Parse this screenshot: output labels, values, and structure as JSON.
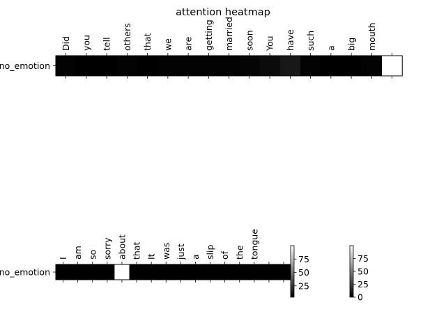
{
  "chart_data": {
    "type": "heatmap",
    "title": "attention heatmap",
    "colormap": "gray",
    "colors": {
      "low": "#000000",
      "high": "#ffffff",
      "frame": "#000000"
    },
    "panels": [
      {
        "row_label": "no_emotion",
        "tokens": [
          "Did",
          "you",
          "tell",
          "others",
          "that",
          "we",
          "are",
          "getting",
          "married",
          "soon",
          "You",
          "have",
          "such",
          "a",
          "big",
          "mouth",
          ""
        ],
        "values": [
          4,
          3,
          3,
          4,
          3,
          4,
          4,
          4,
          4,
          5,
          7,
          12,
          4,
          3,
          3,
          4,
          100
        ]
      },
      {
        "row_label": "no_emotion",
        "tokens": [
          "I",
          "am",
          "so",
          "sorry",
          "about",
          "that",
          "It",
          "was",
          "just",
          "a",
          "slip",
          "of",
          "the",
          "tongue",
          "",
          ""
        ],
        "values": [
          0,
          0,
          0,
          0,
          100,
          0,
          0,
          0,
          0,
          0,
          0,
          0,
          0,
          0,
          0,
          0
        ]
      }
    ],
    "colorbars": [
      {
        "ticks": [
          25,
          50,
          75
        ],
        "range": [
          4,
          100
        ]
      },
      {
        "ticks": [
          0,
          25,
          50,
          75
        ],
        "range": [
          0,
          100
        ]
      }
    ]
  }
}
